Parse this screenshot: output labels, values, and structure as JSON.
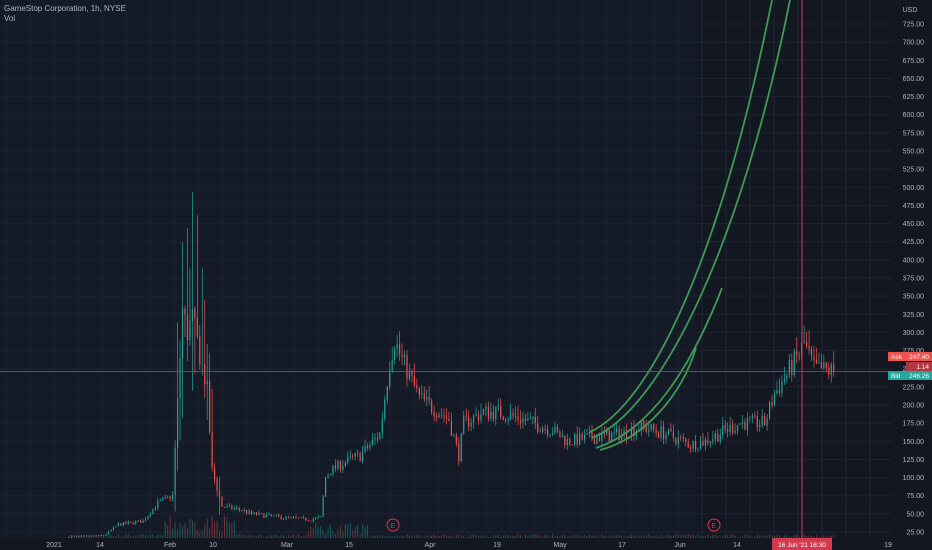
{
  "header": {
    "symbol": "GameStop Corporation, 1h, NYSE",
    "volume_label": "Vol"
  },
  "price_axis": {
    "currency": "USD",
    "ticks": [
      25,
      50,
      75,
      100,
      125,
      150,
      175,
      200,
      225,
      250,
      275,
      300,
      325,
      350,
      375,
      400,
      425,
      450,
      475,
      500,
      525,
      550,
      575,
      600,
      625,
      650,
      675,
      700,
      725
    ],
    "tick_labels": [
      "25.00",
      "50.00",
      "75.00",
      "100.00",
      "125.00",
      "150.00",
      "175.00",
      "200.00",
      "225.00",
      "250.00",
      "275.00",
      "300.00",
      "325.00",
      "350.00",
      "375.00",
      "400.00",
      "425.00",
      "450.00",
      "475.00",
      "500.00",
      "525.00",
      "550.00",
      "575.00",
      "600.00",
      "625.00",
      "650.00",
      "675.00",
      "700.00",
      "725.00"
    ]
  },
  "time_axis": {
    "labels": [
      "2021",
      "14",
      "Feb",
      "10",
      "Mar",
      "15",
      "Apr",
      "19",
      "May",
      "17",
      "Jun",
      "14",
      "19"
    ],
    "crosshair_label": "16 Jun '21   16:30"
  },
  "badges": {
    "ask_label": "Ask",
    "ask_price": "247.40",
    "spread": "1.14",
    "bid_label": "Bid",
    "bid_price": "246.26"
  },
  "events": [
    "E",
    "E"
  ],
  "colors": {
    "background": "#131722",
    "grid": "#1f2433",
    "up": "#26a69a",
    "down": "#ef5350",
    "arc": "#3f9a55",
    "crosshair": "#d33a4f",
    "bid": "#26a69a",
    "ask": "#ef5350"
  },
  "chart_data": {
    "type": "candlestick",
    "series": [
      {
        "name": "GameStop Corporation, 1h, NYSE",
        "x": [
          "2021-01-04",
          "2021-01-11",
          "2021-01-14",
          "2021-01-19",
          "2021-01-22",
          "2021-01-25",
          "2021-01-27",
          "2021-01-28",
          "2021-01-29",
          "2021-02-01",
          "2021-02-02",
          "2021-02-04",
          "2021-02-08",
          "2021-02-10",
          "2021-02-16",
          "2021-02-22",
          "2021-02-24",
          "2021-02-25",
          "2021-02-26",
          "2021-03-02",
          "2021-03-04",
          "2021-03-08",
          "2021-03-10",
          "2021-03-11",
          "2021-03-12",
          "2021-03-16",
          "2021-03-19",
          "2021-03-22",
          "2021-03-24",
          "2021-03-25",
          "2021-03-29",
          "2021-04-01",
          "2021-04-06",
          "2021-04-12",
          "2021-04-15",
          "2021-04-20",
          "2021-04-26",
          "2021-04-30",
          "2021-05-05",
          "2021-05-10",
          "2021-05-13",
          "2021-05-17",
          "2021-05-20",
          "2021-05-25",
          "2021-05-27",
          "2021-06-01",
          "2021-06-02",
          "2021-06-04",
          "2021-06-08"
        ],
        "values": [
          18,
          20,
          35,
          40,
          65,
          75,
          330,
          300,
          320,
          220,
          110,
          60,
          55,
          50,
          45,
          42,
          45,
          100,
          110,
          125,
          130,
          160,
          260,
          290,
          270,
          210,
          195,
          180,
          130,
          175,
          190,
          190,
          180,
          165,
          150,
          155,
          160,
          170,
          160,
          145,
          150,
          165,
          175,
          175,
          215,
          270,
          285,
          250,
          246
        ]
      }
    ],
    "volume": "shown",
    "ylim": [
      25,
      740
    ],
    "y_scale": "linear",
    "grid": true,
    "events": [
      {
        "x": "2021-03-23",
        "label": "E"
      },
      {
        "x": "2021-06-09",
        "label": "E"
      }
    ],
    "current_price": 246.26,
    "annotation": "three green upward curving arcs drawn from mid May"
  }
}
